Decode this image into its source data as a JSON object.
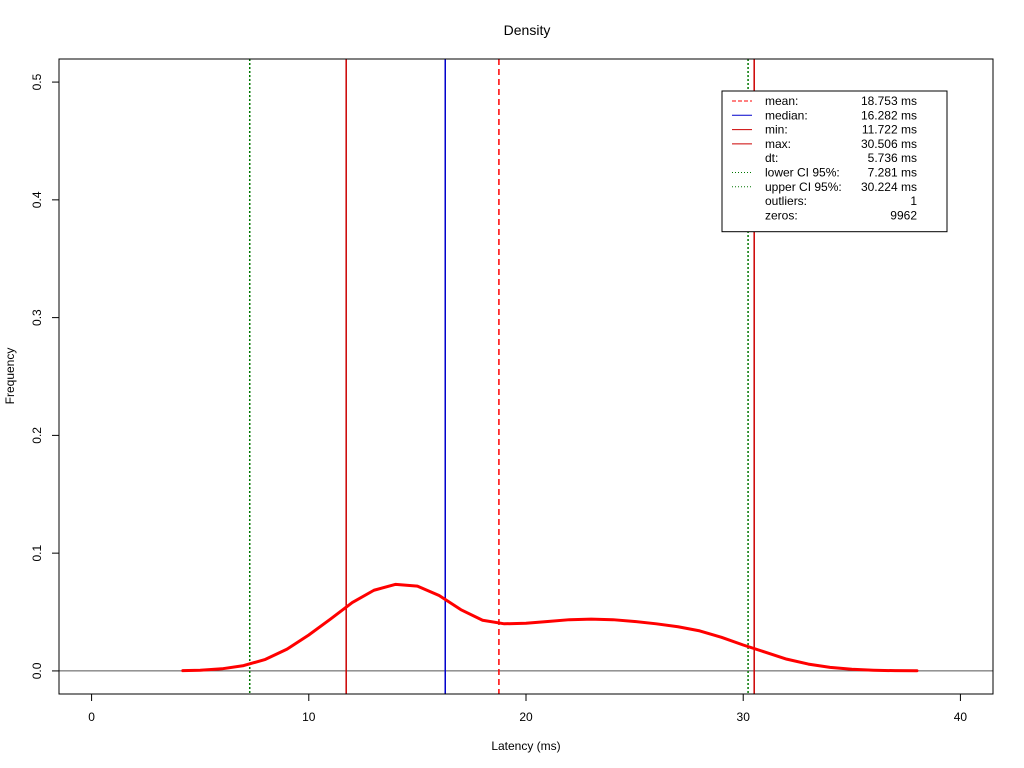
{
  "chart_data": {
    "type": "line",
    "title": "Density",
    "xlabel": "Latency (ms)",
    "ylabel": "Frequency",
    "xlim": [
      -1.5,
      41.5
    ],
    "ylim": [
      -0.0196,
      0.5196
    ],
    "xticks": [
      0,
      10,
      20,
      30,
      40
    ],
    "yticks": [
      0.0,
      0.1,
      0.2,
      0.3,
      0.4,
      0.5
    ],
    "xtick_labels": [
      "0",
      "10",
      "20",
      "30",
      "40"
    ],
    "ytick_labels": [
      "0.0",
      "0.1",
      "0.2",
      "0.3",
      "0.4",
      "0.5"
    ],
    "grid": false,
    "legend_position": "top-right",
    "series": [
      {
        "color": "#ff0000",
        "x": [
          4.2,
          5,
          6,
          7,
          8,
          9,
          10,
          11,
          12,
          13,
          14,
          15,
          16,
          17,
          18,
          19,
          20,
          21,
          22,
          23,
          24,
          25,
          26,
          27,
          28,
          29,
          30,
          31,
          32,
          33,
          34,
          35,
          36,
          37,
          38
        ],
        "y": [
          0.0002,
          0.0006,
          0.0018,
          0.0045,
          0.0098,
          0.0185,
          0.0305,
          0.044,
          0.058,
          0.0685,
          0.0735,
          0.072,
          0.064,
          0.052,
          0.043,
          0.04,
          0.0405,
          0.042,
          0.0435,
          0.044,
          0.0435,
          0.042,
          0.04,
          0.0375,
          0.034,
          0.0285,
          0.022,
          0.016,
          0.01,
          0.0058,
          0.003,
          0.0014,
          0.0006,
          0.0002,
          0.0001
        ]
      }
    ],
    "baseline": 0,
    "vlines": [
      {
        "name": "mean",
        "x": 18.753,
        "color": "#ff0000",
        "style": "dashed"
      },
      {
        "name": "median",
        "x": 16.282,
        "color": "#0000cc",
        "style": "solid"
      },
      {
        "name": "min",
        "x": 11.722,
        "color": "#cc0000",
        "style": "solid"
      },
      {
        "name": "max",
        "x": 30.506,
        "color": "#cc0000",
        "style": "solid"
      },
      {
        "name": "lower CI 95%",
        "x": 7.281,
        "color": "#007700",
        "style": "dotted"
      },
      {
        "name": "upper CI 95%",
        "x": 30.224,
        "color": "#007700",
        "style": "dotted"
      }
    ],
    "legend": [
      {
        "label": "mean:",
        "value": "18.753 ms",
        "color": "#ff0000",
        "style": "dashed"
      },
      {
        "label": "median:",
        "value": "16.282 ms",
        "color": "#0000cc",
        "style": "solid"
      },
      {
        "label": "min:",
        "value": "11.722 ms",
        "color": "#cc0000",
        "style": "solid"
      },
      {
        "label": "max:",
        "value": "30.506 ms",
        "color": "#cc0000",
        "style": "solid"
      },
      {
        "label": "dt:",
        "value": "5.736 ms",
        "color": null,
        "style": null
      },
      {
        "label": "lower CI 95%:",
        "value": "7.281 ms",
        "color": "#007700",
        "style": "dotted"
      },
      {
        "label": "upper CI 95%:",
        "value": "30.224 ms",
        "color": "#007700",
        "style": "dotted"
      },
      {
        "label": "outliers:",
        "value": "1",
        "color": null,
        "style": null
      },
      {
        "label": "zeros:",
        "value": "9962",
        "color": null,
        "style": null
      }
    ]
  }
}
